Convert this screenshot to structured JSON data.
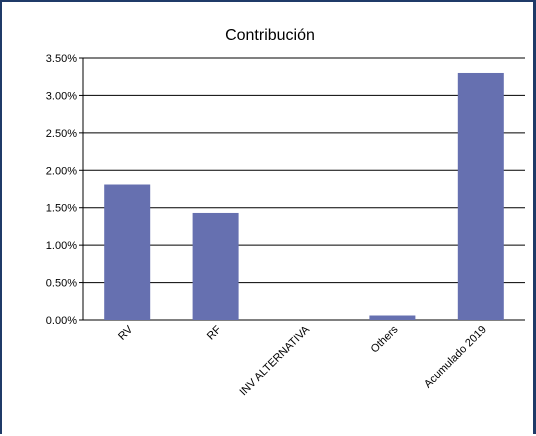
{
  "chart_data": {
    "type": "bar",
    "title": "Contribución",
    "xlabel": "",
    "ylabel": "",
    "categories": [
      "RV",
      "RF",
      "INV ALTERNATIVA",
      "Others",
      "Acumulado 2019"
    ],
    "values": [
      1.81,
      1.43,
      0.0,
      0.06,
      3.3
    ],
    "value_unit": "%",
    "ylim": [
      0,
      3.5
    ],
    "yticks": [
      "0.00%",
      "0.50%",
      "1.00%",
      "1.50%",
      "2.00%",
      "2.50%",
      "3.00%",
      "3.50%"
    ],
    "grid": true,
    "legend": "none",
    "colors": {
      "bar": "#6670b0",
      "frame_border": "#1f3a68",
      "grid": "#000000"
    }
  }
}
